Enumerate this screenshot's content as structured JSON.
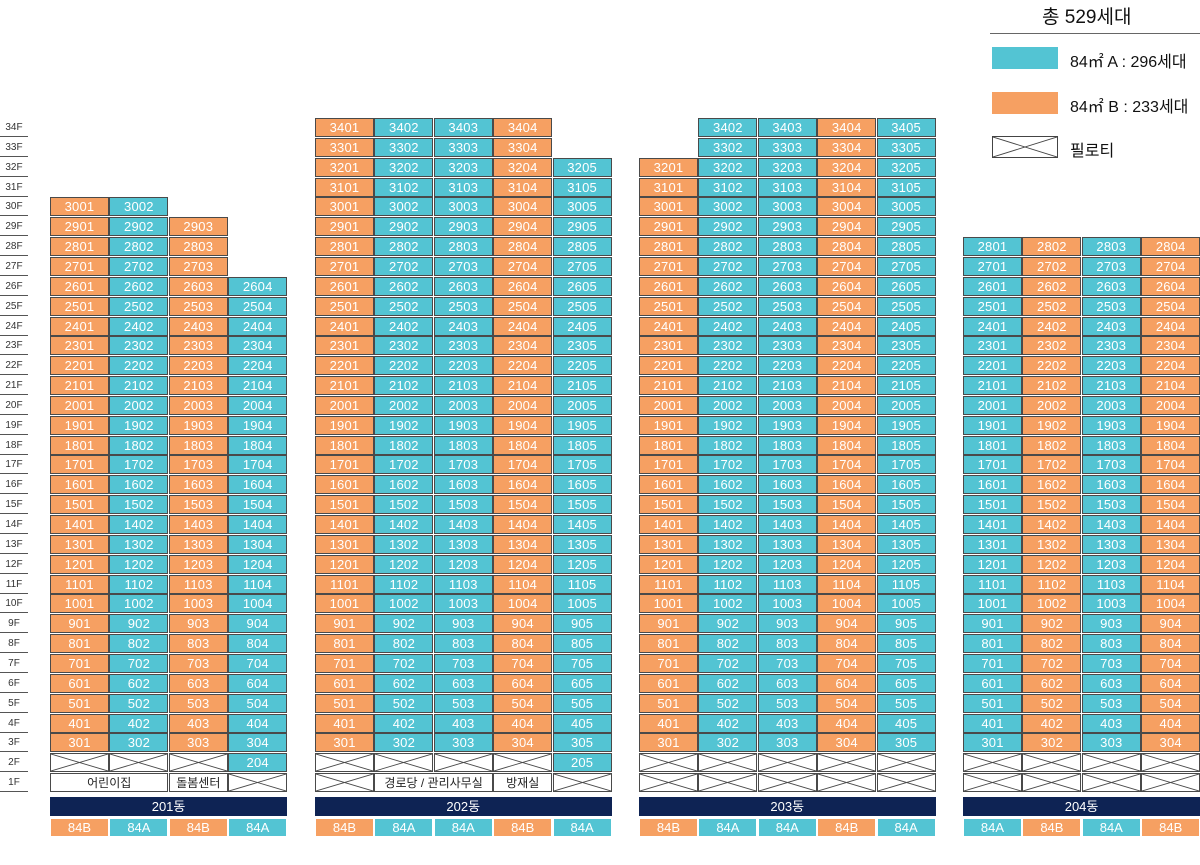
{
  "legend": {
    "total": "총 529세대",
    "type_a": "84㎡ A : 296세대",
    "type_b": "84㎡ B : 233세대",
    "piloti": "필로티"
  },
  "colors": {
    "type_a": "#53c4d3",
    "type_b": "#f6a062",
    "building_bar": "#0e2354"
  },
  "floors": [
    "34F",
    "33F",
    "32F",
    "31F",
    "30F",
    "29F",
    "28F",
    "27F",
    "26F",
    "25F",
    "24F",
    "23F",
    "22F",
    "21F",
    "20F",
    "19F",
    "18F",
    "17F",
    "16F",
    "15F",
    "14F",
    "13F",
    "12F",
    "11F",
    "10F",
    "9F",
    "8F",
    "7F",
    "6F",
    "5F",
    "4F",
    "3F",
    "2F",
    "1F"
  ],
  "buildings": [
    {
      "name": "201동",
      "lines": [
        {
          "type": "B",
          "label": "84B",
          "top_floor": 30
        },
        {
          "type": "A",
          "label": "84A",
          "top_floor": 30
        },
        {
          "type": "B",
          "label": "84B",
          "top_floor": 29
        },
        {
          "type": "A",
          "label": "84A",
          "top_floor": 26
        }
      ],
      "cells_2f": [
        "P",
        "P",
        "P",
        "A"
      ],
      "cells_1f": [
        "F",
        "F",
        "F",
        "P"
      ],
      "facilities": [
        {
          "start_col": 0,
          "span": 2,
          "label": "어린이집"
        },
        {
          "start_col": 2,
          "span": 1,
          "label": "돌봄센터"
        }
      ],
      "exceptions": []
    },
    {
      "name": "202동",
      "lines": [
        {
          "type": "B",
          "label": "84B",
          "top_floor": 34
        },
        {
          "type": "A",
          "label": "84A",
          "top_floor": 34
        },
        {
          "type": "A",
          "label": "84A",
          "top_floor": 34
        },
        {
          "type": "B",
          "label": "84B",
          "top_floor": 34
        },
        {
          "type": "A",
          "label": "84A",
          "top_floor": 32
        }
      ],
      "cells_2f": [
        "P",
        "P",
        "P",
        "P",
        "A"
      ],
      "cells_1f": [
        "P",
        "F",
        "F",
        "F",
        "P"
      ],
      "facilities": [
        {
          "start_col": 1,
          "span": 2,
          "label": "경로당 / 관리사무실"
        },
        {
          "start_col": 3,
          "span": 1,
          "label": "방재실"
        }
      ],
      "exceptions": []
    },
    {
      "name": "203동",
      "lines": [
        {
          "type": "B",
          "label": "84B",
          "top_floor": 32
        },
        {
          "type": "A",
          "label": "84A",
          "top_floor": 34
        },
        {
          "type": "A",
          "label": "84A",
          "top_floor": 34
        },
        {
          "type": "B",
          "label": "84B",
          "top_floor": 34
        },
        {
          "type": "A",
          "label": "84A",
          "top_floor": 34
        }
      ],
      "cells_2f": [
        "P",
        "P",
        "P",
        "P",
        "P"
      ],
      "cells_1f": [
        "P",
        "P",
        "P",
        "P",
        "P"
      ],
      "facilities": [],
      "exceptions": [
        {
          "floor": 34,
          "col": 1,
          "unit": "3402"
        },
        {
          "floor": 34,
          "col": 2,
          "unit": "3403"
        },
        {
          "floor": 34,
          "col": 3,
          "unit": "3404"
        },
        {
          "floor": 34,
          "col": 4,
          "unit": "3405"
        },
        {
          "floor": 33,
          "col": 1,
          "unit": "3302"
        },
        {
          "floor": 33,
          "col": 2,
          "unit": "3303"
        },
        {
          "floor": 33,
          "col": 3,
          "unit": "3304"
        },
        {
          "floor": 33,
          "col": 4,
          "unit": "3305"
        }
      ]
    },
    {
      "name": "204동",
      "lines": [
        {
          "type": "A",
          "label": "84A",
          "top_floor": 28
        },
        {
          "type": "B",
          "label": "84B",
          "top_floor": 28
        },
        {
          "type": "A",
          "label": "84A",
          "top_floor": 28
        },
        {
          "type": "B",
          "label": "84B",
          "top_floor": 28
        }
      ],
      "cells_2f": [
        "P",
        "P",
        "P",
        "P"
      ],
      "cells_1f": [
        "P",
        "P",
        "P",
        "P"
      ],
      "facilities": [],
      "exceptions": []
    }
  ]
}
